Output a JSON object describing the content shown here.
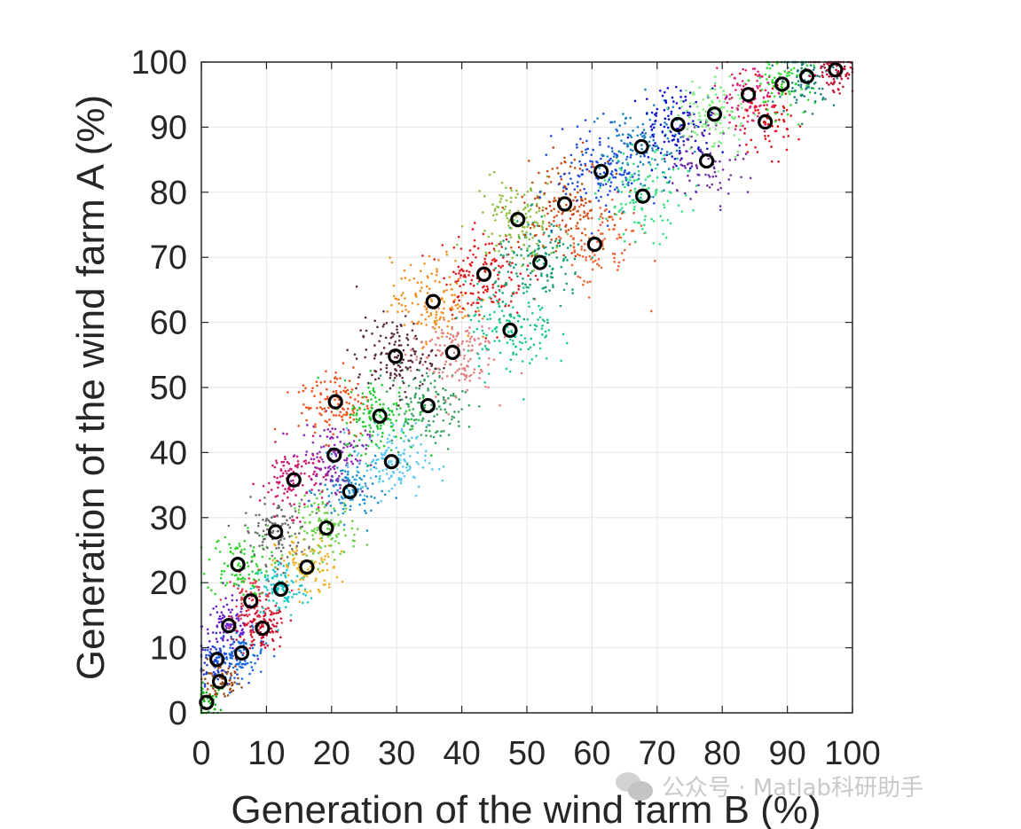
{
  "chart_data": {
    "type": "scatter",
    "title": "",
    "xlabel": "Generation of the wind farm B (%)",
    "ylabel": "Generation of the wind farm A (%)",
    "xlim": [
      0,
      100
    ],
    "ylim": [
      0,
      100
    ],
    "xticks": [
      "0",
      "10",
      "20",
      "30",
      "40",
      "50",
      "60",
      "70",
      "80",
      "90",
      "100"
    ],
    "yticks": [
      "0",
      "10",
      "20",
      "30",
      "40",
      "50",
      "60",
      "70",
      "80",
      "90",
      "100"
    ],
    "grid": true,
    "legend": "none",
    "center_marker": "black open circle",
    "clusters": [
      {
        "center": [
          0.8,
          1.6
        ],
        "color": "#11b811",
        "spread": 1.5,
        "points": 60
      },
      {
        "center": [
          2.8,
          4.8
        ],
        "color": "#9a4a1a",
        "spread": 1.6,
        "points": 70
      },
      {
        "center": [
          2.4,
          8.2
        ],
        "color": "#1f3fd6",
        "spread": 1.8,
        "points": 80
      },
      {
        "center": [
          6.2,
          9.2
        ],
        "color": "#1a6fe0",
        "spread": 1.8,
        "points": 90
      },
      {
        "center": [
          4.2,
          13.4
        ],
        "color": "#6a1fd0",
        "spread": 2.0,
        "points": 90
      },
      {
        "center": [
          9.4,
          13.0
        ],
        "color": "#d0102a",
        "spread": 1.8,
        "points": 100
      },
      {
        "center": [
          7.6,
          17.2
        ],
        "color": "#e03a4a",
        "spread": 2.0,
        "points": 90
      },
      {
        "center": [
          12.2,
          19.0
        ],
        "color": "#18c8c8",
        "spread": 2.2,
        "points": 110
      },
      {
        "center": [
          5.6,
          22.8
        ],
        "color": "#2fd52f",
        "spread": 2.4,
        "points": 100
      },
      {
        "center": [
          16.2,
          22.4
        ],
        "color": "#f0b020",
        "spread": 2.4,
        "points": 110
      },
      {
        "center": [
          11.4,
          27.8
        ],
        "color": "#6b6b6b",
        "spread": 2.4,
        "points": 120
      },
      {
        "center": [
          19.2,
          28.4
        ],
        "color": "#6ad04a",
        "spread": 2.4,
        "points": 120
      },
      {
        "center": [
          14.2,
          35.8
        ],
        "color": "#d01870",
        "spread": 2.6,
        "points": 120
      },
      {
        "center": [
          22.8,
          34.0
        ],
        "color": "#1a8fd0",
        "spread": 2.4,
        "points": 120
      },
      {
        "center": [
          20.4,
          39.6
        ],
        "color": "#8a2ab0",
        "spread": 2.6,
        "points": 120
      },
      {
        "center": [
          29.2,
          38.6
        ],
        "color": "#5ac8f0",
        "spread": 2.8,
        "points": 130
      },
      {
        "center": [
          20.6,
          47.8
        ],
        "color": "#f0501a",
        "spread": 2.8,
        "points": 120
      },
      {
        "center": [
          27.4,
          45.6
        ],
        "color": "#22cc33",
        "spread": 2.8,
        "points": 140
      },
      {
        "center": [
          34.8,
          47.2
        ],
        "color": "#3aa060",
        "spread": 3.0,
        "points": 130
      },
      {
        "center": [
          29.8,
          54.8
        ],
        "color": "#5a2a3a",
        "spread": 3.0,
        "points": 140
      },
      {
        "center": [
          38.6,
          55.4
        ],
        "color": "#e08080",
        "spread": 3.2,
        "points": 140
      },
      {
        "center": [
          35.6,
          63.2
        ],
        "color": "#f09020",
        "spread": 3.2,
        "points": 140
      },
      {
        "center": [
          43.4,
          67.4
        ],
        "color": "#e01a1a",
        "spread": 3.2,
        "points": 160
      },
      {
        "center": [
          47.4,
          58.8
        ],
        "color": "#18c890",
        "spread": 3.4,
        "points": 140
      },
      {
        "center": [
          52.0,
          69.2
        ],
        "color": "#18a070",
        "spread": 3.4,
        "points": 150
      },
      {
        "center": [
          48.6,
          75.8
        ],
        "color": "#90c040",
        "spread": 3.4,
        "points": 130
      },
      {
        "center": [
          55.8,
          78.2
        ],
        "color": "#c84a10",
        "spread": 3.4,
        "points": 140
      },
      {
        "center": [
          60.4,
          72.0
        ],
        "color": "#f06030",
        "spread": 3.4,
        "points": 110
      },
      {
        "center": [
          61.4,
          83.2
        ],
        "color": "#1a4ae0",
        "spread": 3.4,
        "points": 140
      },
      {
        "center": [
          67.6,
          87.0
        ],
        "color": "#1a80c0",
        "spread": 3.2,
        "points": 120
      },
      {
        "center": [
          67.8,
          79.4
        ],
        "color": "#30e080",
        "spread": 3.2,
        "points": 120
      },
      {
        "center": [
          73.2,
          90.4
        ],
        "color": "#1010d0",
        "spread": 3.0,
        "points": 120
      },
      {
        "center": [
          77.6,
          84.8
        ],
        "color": "#7030a0",
        "spread": 3.0,
        "points": 90
      },
      {
        "center": [
          78.8,
          92.0
        ],
        "color": "#7af07a",
        "spread": 3.0,
        "points": 110
      },
      {
        "center": [
          84.0,
          95.0
        ],
        "color": "#e0207a",
        "spread": 2.6,
        "points": 100
      },
      {
        "center": [
          86.6,
          90.8
        ],
        "color": "#e01010",
        "spread": 2.6,
        "points": 70
      },
      {
        "center": [
          89.2,
          96.6
        ],
        "color": "#30e030",
        "spread": 2.4,
        "points": 90
      },
      {
        "center": [
          93.0,
          97.8
        ],
        "color": "#208080",
        "spread": 2.2,
        "points": 90
      },
      {
        "center": [
          97.4,
          98.8
        ],
        "color": "#c01030",
        "spread": 1.8,
        "points": 80
      }
    ]
  },
  "watermark": {
    "icon": "wechat-icon",
    "text": "公众号 · Matlab科研助手"
  }
}
